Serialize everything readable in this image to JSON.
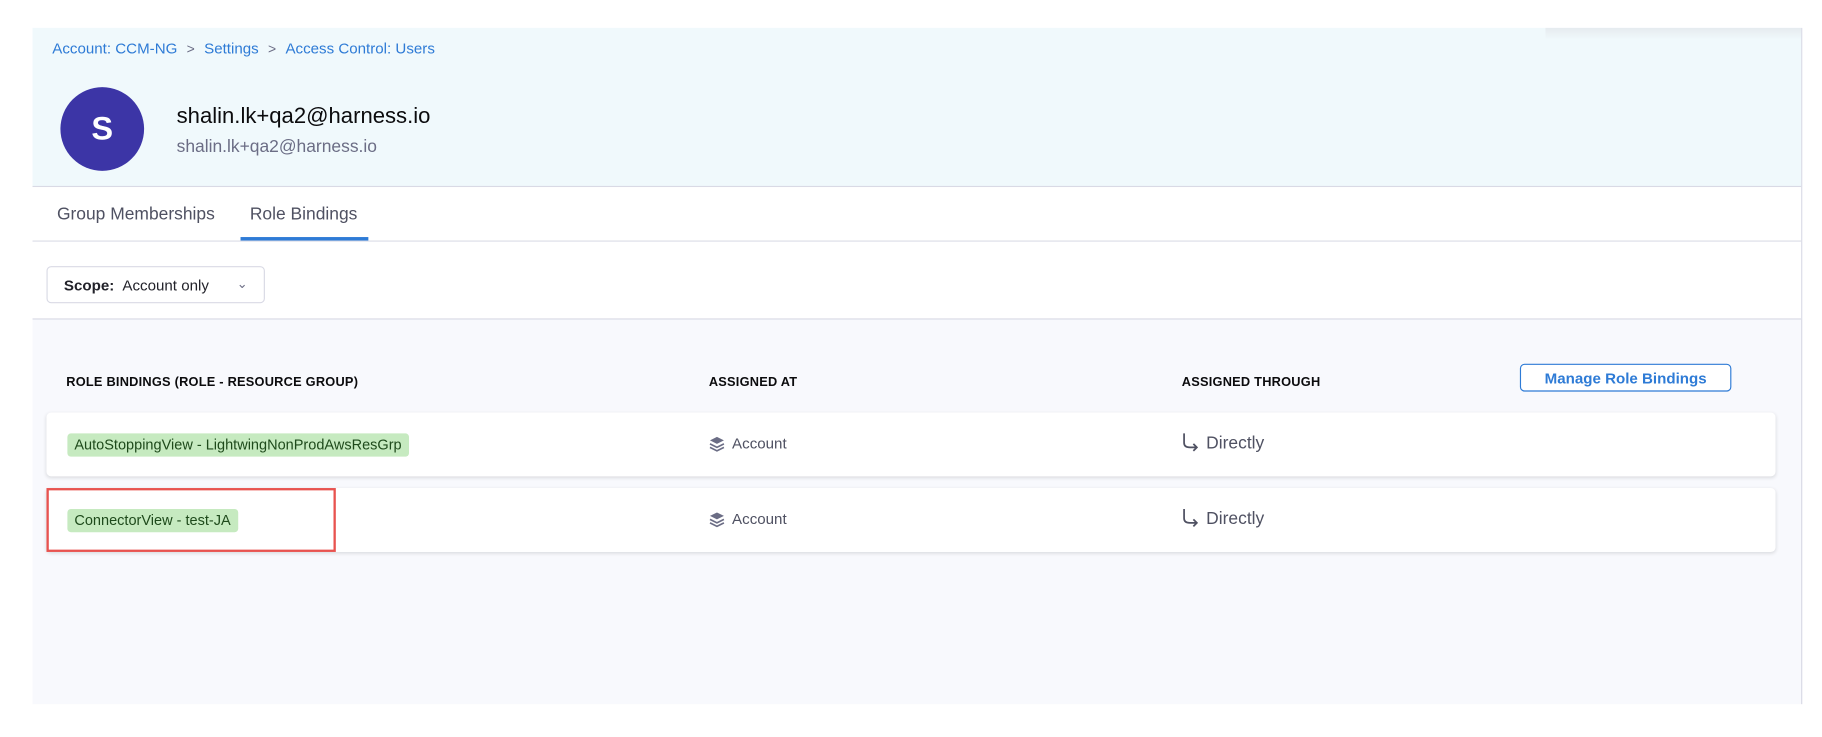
{
  "breadcrumb": [
    {
      "label": "Account: CCM-NG"
    },
    {
      "label": "Settings"
    },
    {
      "label": "Access Control: Users"
    }
  ],
  "breadcrumb_separator": ">",
  "user": {
    "initial": "S",
    "name": "shalin.lk+qa2@harness.io",
    "email": "shalin.lk+qa2@harness.io",
    "avatar_color": "#3c35a6"
  },
  "tabs": [
    {
      "label": "Group Memberships",
      "active": false
    },
    {
      "label": "Role Bindings",
      "active": true
    }
  ],
  "scope": {
    "label": "Scope:",
    "value": "Account only"
  },
  "table": {
    "headers": [
      "ROLE BINDINGS (ROLE - RESOURCE GROUP)",
      "ASSIGNED AT",
      "ASSIGNED THROUGH"
    ],
    "manage_button": "Manage Role Bindings",
    "rows": [
      {
        "binding": "AutoStoppingView - LightwingNonProdAwsResGrp",
        "assigned_at": "Account",
        "assigned_through": "Directly",
        "highlighted": false
      },
      {
        "binding": "ConnectorView - test-JA",
        "assigned_at": "Account",
        "assigned_through": "Directly",
        "highlighted": true
      }
    ]
  },
  "colors": {
    "accent": "#2e7bd6",
    "tag_bg": "#c6eac0",
    "highlight": "#e8534f"
  }
}
